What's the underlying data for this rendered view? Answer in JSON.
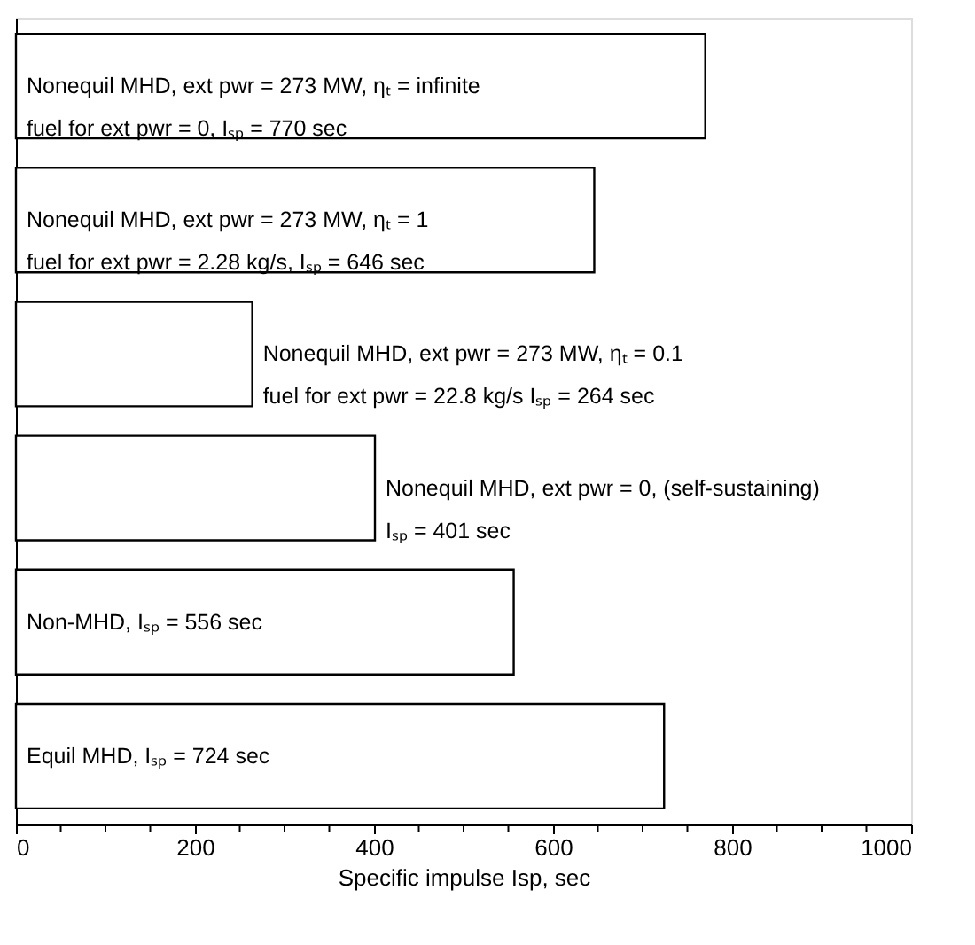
{
  "chart_data": {
    "type": "bar",
    "orientation": "horizontal",
    "categories": [
      null,
      null,
      null,
      null,
      null,
      null
    ],
    "values": [
      770,
      646,
      264,
      401,
      556,
      724
    ],
    "color": "#ffffff",
    "value_labels": [
      "Nonequil MHD, ext pwr = 273 MW, ηₜ = infinite\nfuel for ext pwr = 0, Iₛₚ = 770 sec",
      "Nonequil MHD, ext pwr = 273 MW, ηₜ = 1\nfuel for ext pwr = 2.28 kg/s, Iₛₚ = 646 sec",
      "Nonequil MHD, ext pwr = 273 MW, ηₜ = 0.1\nfuel for ext pwr = 22.8 kg/s Iₛₚ = 264 sec",
      "Nonequil MHD, ext pwr = 0, (self-sustaining)\nIₛₚ = 401 sec",
      "Non-MHD, Iₛₚ = 556 sec",
      "Equil MHD, Iₛₚ = 724 sec"
    ],
    "xlabel": "Specific impulse Isp, sec",
    "xlim": [
      0,
      1000
    ],
    "xticks": [
      0,
      {
        "value": 50,
        "label": null
      },
      {
        "value": 100,
        "label": null
      },
      {
        "value": 150,
        "label": null
      },
      200,
      {
        "value": 250,
        "label": null
      },
      {
        "value": 300,
        "label": null
      },
      {
        "value": 350,
        "label": null
      },
      400,
      {
        "value": 450,
        "label": null
      },
      {
        "value": 500,
        "label": null
      },
      {
        "value": 550,
        "label": null
      },
      600,
      {
        "value": 650,
        "label": null
      },
      {
        "value": 700,
        "label": null
      },
      {
        "value": 750,
        "label": null
      },
      800,
      {
        "value": 850,
        "label": null
      },
      {
        "value": 900,
        "label": null
      },
      {
        "value": 950,
        "label": null
      },
      1000
    ],
    "tick_labels": "x",
    "grid": false
  }
}
